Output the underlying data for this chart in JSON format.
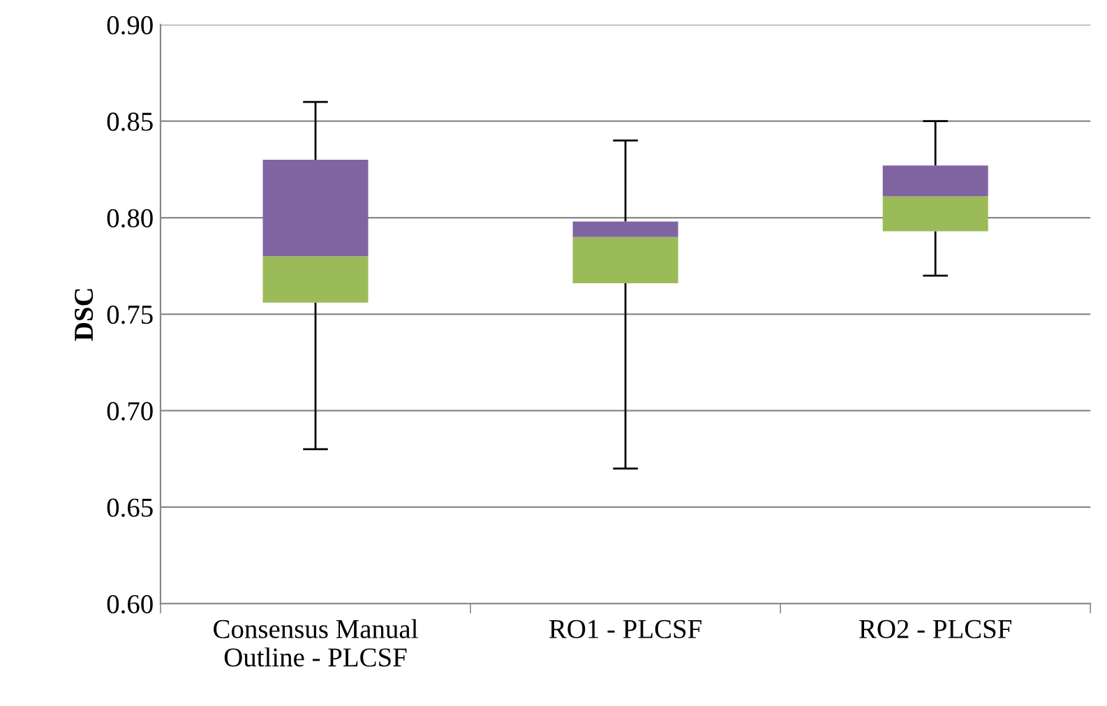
{
  "chart_data": {
    "type": "box",
    "ylabel": "DSC",
    "categories": [
      "Consensus Manual\nOutline - PLCSF",
      "RO1 - PLCSF",
      "RO2 - PLCSF"
    ],
    "boxes": [
      {
        "low": 0.68,
        "q1": 0.756,
        "median": 0.78,
        "q3": 0.83,
        "high": 0.86
      },
      {
        "low": 0.67,
        "q1": 0.766,
        "median": 0.79,
        "q3": 0.798,
        "high": 0.84
      },
      {
        "low": 0.77,
        "q1": 0.793,
        "median": 0.811,
        "q3": 0.827,
        "high": 0.85
      }
    ],
    "colors": [
      [
        "#9bbb59",
        "#8064a2"
      ],
      [
        "#9bbb59",
        "#8064a2"
      ],
      [
        "#9bbb59",
        "#8064a2"
      ]
    ],
    "ylim": [
      0.6,
      0.9
    ],
    "yticks": [
      {
        "value": 0.6,
        "label": "0.60"
      },
      {
        "value": 0.65,
        "label": "0.65"
      },
      {
        "value": 0.7,
        "label": "0.70"
      },
      {
        "value": 0.75,
        "label": "0.75"
      },
      {
        "value": 0.8,
        "label": "0.80"
      },
      {
        "value": 0.85,
        "label": "0.85"
      },
      {
        "value": 0.9,
        "label": "0.90"
      }
    ],
    "grid": "y"
  }
}
